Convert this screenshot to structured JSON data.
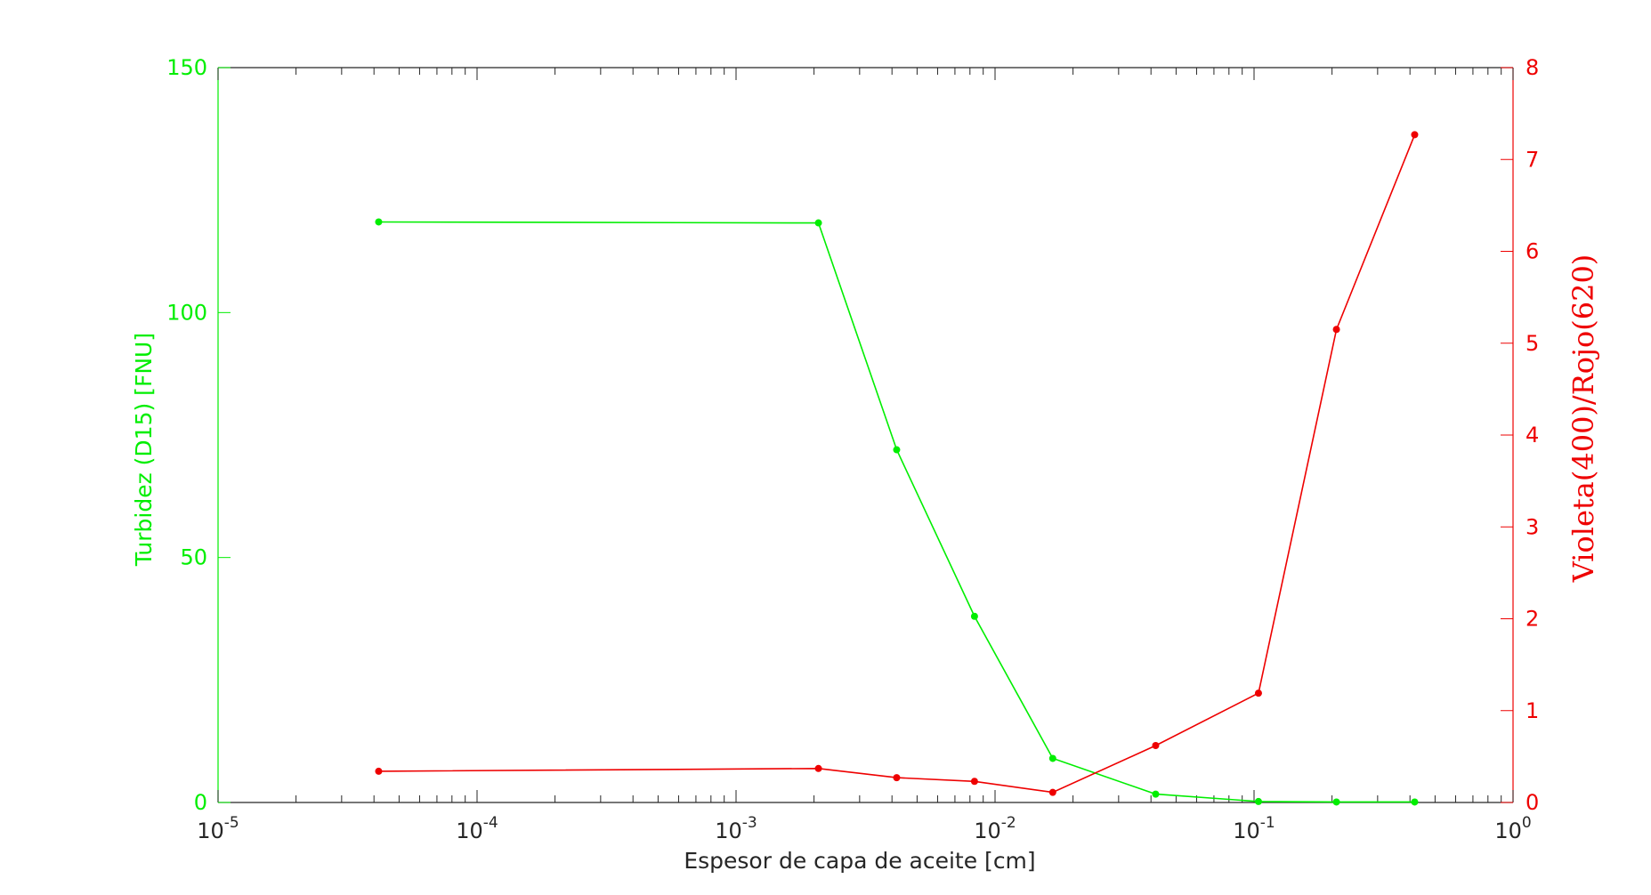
{
  "chart_data": {
    "type": "line",
    "title": "",
    "xlabel": "Espesor de capa de aceite [cm]",
    "x_scale": "log",
    "xlim": [
      1e-05,
      1
    ],
    "x_ticks": [
      {
        "value": 1e-05,
        "base": "10",
        "exp": "-5"
      },
      {
        "value": 0.0001,
        "base": "10",
        "exp": "-4"
      },
      {
        "value": 0.001,
        "base": "10",
        "exp": "-3"
      },
      {
        "value": 0.01,
        "base": "10",
        "exp": "-2"
      },
      {
        "value": 0.1,
        "base": "10",
        "exp": "-1"
      },
      {
        "value": 1,
        "base": "10",
        "exp": "0"
      }
    ],
    "y_left": {
      "label": "Turbidez (D15) [FNU]",
      "lim": [
        0,
        150
      ],
      "ticks": [
        0,
        50,
        100,
        150
      ],
      "color": "#00ee00"
    },
    "y_right": {
      "label": "Violeta(400)/Rojo(620)",
      "lim": [
        0,
        8
      ],
      "ticks": [
        0,
        1,
        2,
        3,
        4,
        5,
        6,
        7,
        8
      ],
      "color": "#ee0000"
    },
    "grid": false,
    "series": [
      {
        "axis": "left",
        "color": "#00ee00",
        "x": [
          4.17e-05,
          0.00208,
          0.00417,
          0.00833,
          0.0167,
          0.0417,
          0.104,
          0.208,
          0.417
        ],
        "values": [
          118.5,
          118.3,
          72,
          38,
          9,
          1.7,
          0.2,
          0.1,
          0.1
        ]
      },
      {
        "axis": "right",
        "color": "#ee0000",
        "x": [
          4.17e-05,
          0.00208,
          0.00417,
          0.00833,
          0.0167,
          0.0417,
          0.104,
          0.208,
          0.417
        ],
        "values": [
          0.34,
          0.37,
          0.27,
          0.23,
          0.11,
          0.62,
          1.19,
          5.15,
          7.27
        ]
      }
    ]
  }
}
